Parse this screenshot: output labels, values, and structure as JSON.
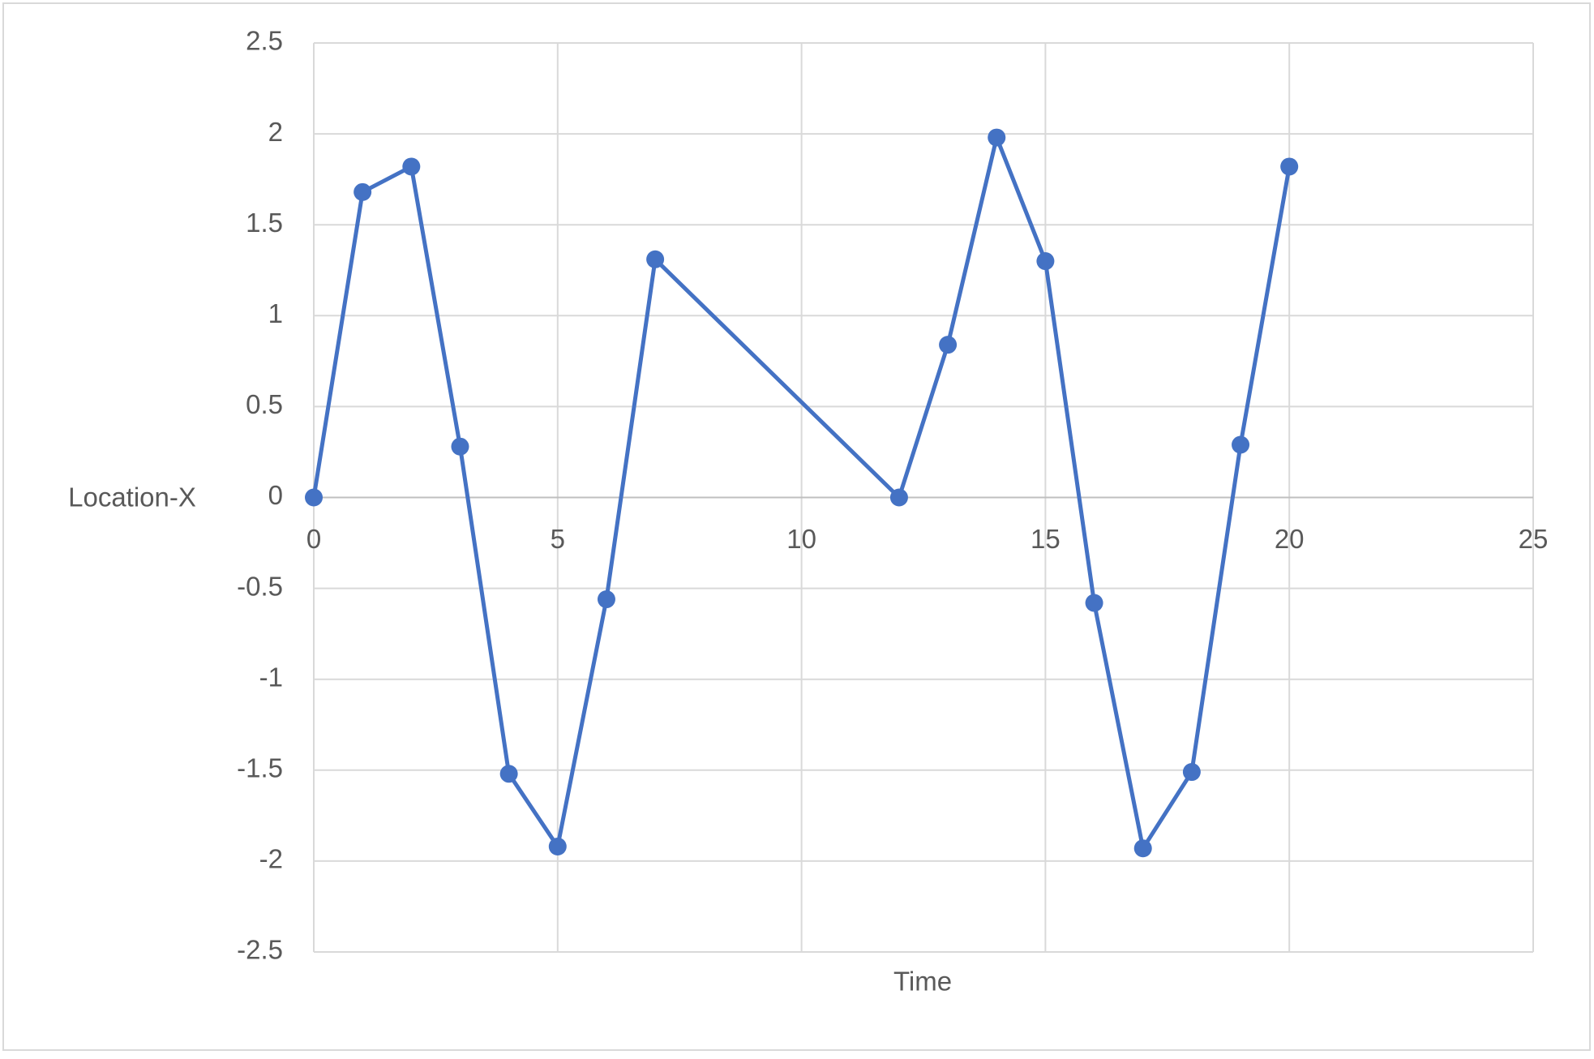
{
  "chart_data": {
    "type": "line",
    "x_label": "Time",
    "y_label": "Location-X",
    "x": [
      0,
      1,
      2,
      3,
      4,
      5,
      6,
      7,
      12,
      13,
      14,
      15,
      16,
      17,
      18,
      19,
      20
    ],
    "values": [
      0,
      1.68,
      1.82,
      0.28,
      -1.52,
      -1.92,
      -0.56,
      1.31,
      0,
      0.84,
      1.98,
      1.3,
      -0.58,
      -1.93,
      -1.51,
      0.29,
      1.82
    ],
    "color": "#4472c4",
    "markers": true,
    "xlim": [
      0,
      25
    ],
    "xticks": [
      0,
      5,
      10,
      15,
      20,
      25
    ],
    "ylim": [
      -2.5,
      2.5
    ],
    "yticks": [
      -2.5,
      -2,
      -1.5,
      -1,
      -0.5,
      0,
      0.5,
      1,
      1.5,
      2,
      2.5
    ],
    "grid": true
  }
}
